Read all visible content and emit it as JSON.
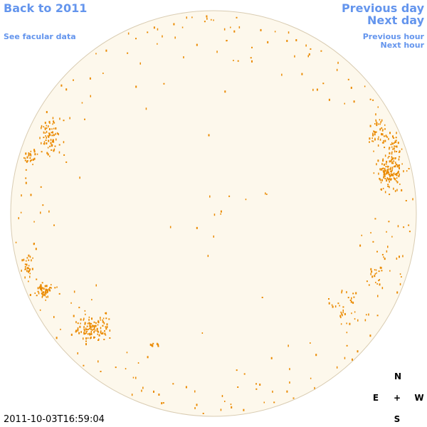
{
  "header": {
    "back_link": "Back to 2011",
    "facular_link": "See facular data"
  },
  "nav": {
    "previous_day": "Previous day",
    "next_day": "Next day",
    "previous_hour": "Previous hour",
    "next_hour": "Next hour"
  },
  "compass": {
    "north": "N",
    "east": "E",
    "center": "+",
    "west": "W",
    "south": "S"
  },
  "timestamp": "2011-10-03T16:59:04"
}
